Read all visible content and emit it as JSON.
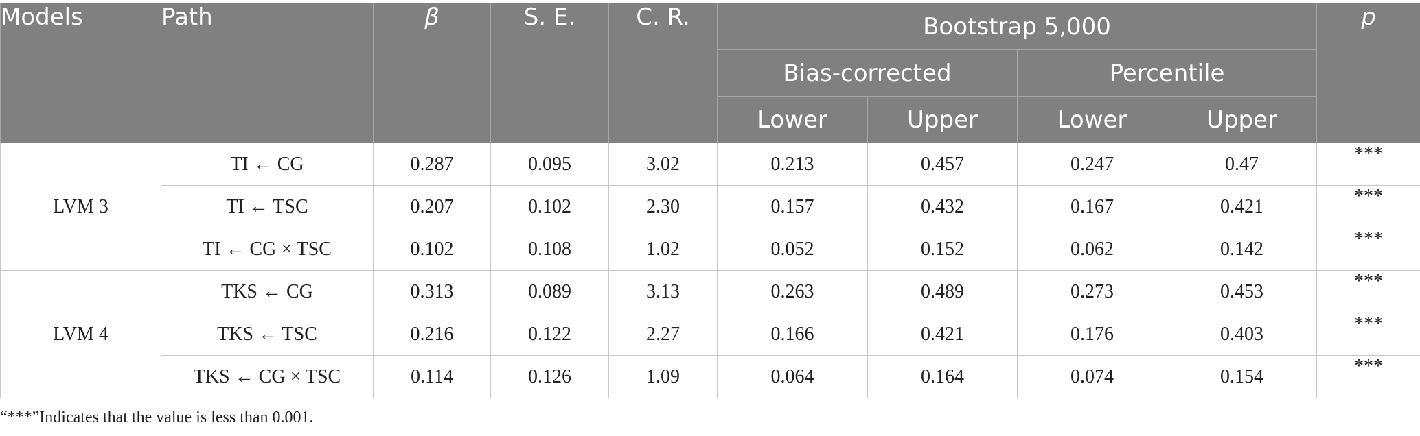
{
  "header": {
    "models": "Models",
    "path": "Path",
    "beta": "β",
    "se": "S. E.",
    "cr": "C. R.",
    "bootstrap": "Bootstrap 5,000",
    "p": "p",
    "bias_corrected": "Bias-corrected",
    "percentile": "Percentile",
    "bc_lower": "Lower",
    "bc_upper": "Upper",
    "pc_lower": "Lower",
    "pc_upper": "Upper"
  },
  "groups": [
    {
      "model": "LVM 3",
      "rows": [
        {
          "path": "TI ← CG",
          "beta": "0.287",
          "se": "0.095",
          "cr": "3.02",
          "bc_lower": "0.213",
          "bc_upper": "0.457",
          "pc_lower": "0.247",
          "pc_upper": "0.47",
          "p": "***"
        },
        {
          "path": "TI ← TSC",
          "beta": "0.207",
          "se": "0.102",
          "cr": "2.30",
          "bc_lower": "0.157",
          "bc_upper": "0.432",
          "pc_lower": "0.167",
          "pc_upper": "0.421",
          "p": "***"
        },
        {
          "path": "TI ← CG × TSC",
          "beta": "0.102",
          "se": "0.108",
          "cr": "1.02",
          "bc_lower": "0.052",
          "bc_upper": "0.152",
          "pc_lower": "0.062",
          "pc_upper": "0.142",
          "p": "***"
        }
      ]
    },
    {
      "model": "LVM 4",
      "rows": [
        {
          "path": "TKS ← CG",
          "beta": "0.313",
          "se": "0.089",
          "cr": "3.13",
          "bc_lower": "0.263",
          "bc_upper": "0.489",
          "pc_lower": "0.273",
          "pc_upper": "0.453",
          "p": "***"
        },
        {
          "path": "TKS ← TSC",
          "beta": "0.216",
          "se": "0.122",
          "cr": "2.27",
          "bc_lower": "0.166",
          "bc_upper": "0.421",
          "pc_lower": "0.176",
          "pc_upper": "0.403",
          "p": "***"
        },
        {
          "path": "TKS ← CG × TSC",
          "beta": "0.114",
          "se": "0.126",
          "cr": "1.09",
          "bc_lower": "0.064",
          "bc_upper": "0.164",
          "pc_lower": "0.074",
          "pc_upper": "0.154",
          "p": "***"
        }
      ]
    }
  ],
  "footnote": "“***”Indicates that the value is less than 0.001."
}
